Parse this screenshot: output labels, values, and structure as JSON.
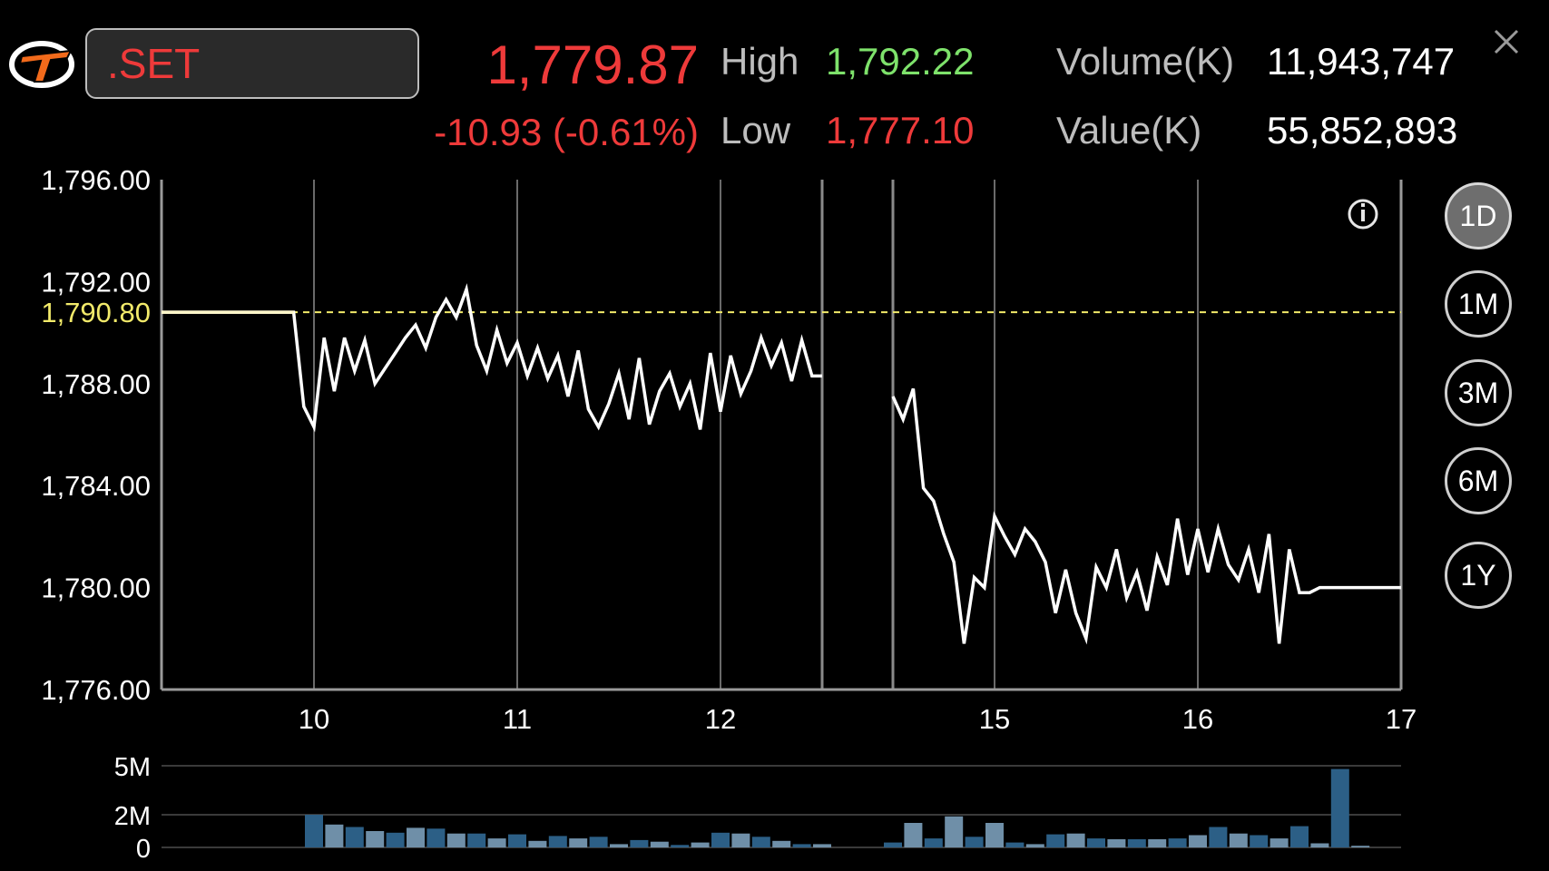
{
  "header": {
    "symbol": ".SET",
    "last": "1,779.87",
    "change": "-10.93 (-0.61%)",
    "high_label": "High",
    "high": "1,792.22",
    "low_label": "Low",
    "low": "1,777.10",
    "volume_label": "Volume(K)",
    "volume": "11,943,747",
    "value_label": "Value(K)",
    "value": "55,852,893"
  },
  "periods": [
    "1D",
    "1M",
    "3M",
    "6M",
    "1Y"
  ],
  "active_period": "1D",
  "colors": {
    "down": "#ee3a3a",
    "up": "#7ee26b",
    "prev_close": "#f2ea6a",
    "line": "#ffffff",
    "volume_dark": "#2c5f86",
    "volume_light": "#6f8fa8"
  },
  "chart_data": [
    {
      "type": "line",
      "y_ticks": [
        "1,776.00",
        "1,780.00",
        "1,784.00",
        "1,788.00",
        "1,792.00",
        "1,796.00"
      ],
      "x_ticks": [
        "10",
        "11",
        "12",
        "15",
        "16",
        "17"
      ],
      "ylim": [
        1776,
        1796
      ],
      "prev_close": 1790.8,
      "prev_close_label": "1,790.80",
      "sessions": [
        {
          "name": "morning",
          "points": [
            [
              9.25,
              1790.8
            ],
            [
              9.9,
              1790.8
            ],
            [
              9.95,
              1787.1
            ],
            [
              10.0,
              1786.3
            ],
            [
              10.05,
              1789.8
            ],
            [
              10.1,
              1787.7
            ],
            [
              10.15,
              1789.8
            ],
            [
              10.2,
              1788.5
            ],
            [
              10.25,
              1789.7
            ],
            [
              10.3,
              1788.0
            ],
            [
              10.35,
              1788.6
            ],
            [
              10.4,
              1789.2
            ],
            [
              10.45,
              1789.8
            ],
            [
              10.5,
              1790.3
            ],
            [
              10.55,
              1789.4
            ],
            [
              10.6,
              1790.6
            ],
            [
              10.65,
              1791.3
            ],
            [
              10.7,
              1790.6
            ],
            [
              10.75,
              1791.7
            ],
            [
              10.8,
              1789.5
            ],
            [
              10.85,
              1788.5
            ],
            [
              10.9,
              1790.1
            ],
            [
              10.95,
              1788.8
            ],
            [
              11.0,
              1789.6
            ],
            [
              11.05,
              1788.3
            ],
            [
              11.1,
              1789.4
            ],
            [
              11.15,
              1788.2
            ],
            [
              11.2,
              1789.1
            ],
            [
              11.25,
              1787.5
            ],
            [
              11.3,
              1789.3
            ],
            [
              11.35,
              1787.0
            ],
            [
              11.4,
              1786.3
            ],
            [
              11.45,
              1787.2
            ],
            [
              11.5,
              1788.4
            ],
            [
              11.55,
              1786.6
            ],
            [
              11.6,
              1789.0
            ],
            [
              11.65,
              1786.4
            ],
            [
              11.7,
              1787.7
            ],
            [
              11.75,
              1788.4
            ],
            [
              11.8,
              1787.1
            ],
            [
              11.85,
              1788.0
            ],
            [
              11.9,
              1786.2
            ],
            [
              11.95,
              1789.2
            ],
            [
              12.0,
              1786.9
            ],
            [
              12.05,
              1789.1
            ],
            [
              12.1,
              1787.6
            ],
            [
              12.15,
              1788.5
            ],
            [
              12.2,
              1789.8
            ],
            [
              12.25,
              1788.7
            ],
            [
              12.3,
              1789.6
            ],
            [
              12.35,
              1788.1
            ],
            [
              12.4,
              1789.7
            ],
            [
              12.45,
              1788.3
            ],
            [
              12.5,
              1788.3
            ]
          ]
        },
        {
          "name": "afternoon",
          "points": [
            [
              14.5,
              1787.5
            ],
            [
              14.55,
              1786.6
            ],
            [
              14.6,
              1787.8
            ],
            [
              14.65,
              1783.9
            ],
            [
              14.7,
              1783.4
            ],
            [
              14.75,
              1782.1
            ],
            [
              14.8,
              1781.0
            ],
            [
              14.85,
              1777.8
            ],
            [
              14.9,
              1780.4
            ],
            [
              14.95,
              1780.0
            ],
            [
              15.0,
              1782.8
            ],
            [
              15.05,
              1782.0
            ],
            [
              15.1,
              1781.3
            ],
            [
              15.15,
              1782.3
            ],
            [
              15.2,
              1781.8
            ],
            [
              15.25,
              1781.0
            ],
            [
              15.3,
              1779.0
            ],
            [
              15.35,
              1780.7
            ],
            [
              15.4,
              1779.0
            ],
            [
              15.45,
              1778.0
            ],
            [
              15.5,
              1780.8
            ],
            [
              15.55,
              1780.0
            ],
            [
              15.6,
              1781.5
            ],
            [
              15.65,
              1779.6
            ],
            [
              15.7,
              1780.6
            ],
            [
              15.75,
              1779.1
            ],
            [
              15.8,
              1781.2
            ],
            [
              15.85,
              1780.1
            ],
            [
              15.9,
              1782.7
            ],
            [
              15.95,
              1780.5
            ],
            [
              16.0,
              1782.3
            ],
            [
              16.05,
              1780.6
            ],
            [
              16.1,
              1782.3
            ],
            [
              16.15,
              1780.9
            ],
            [
              16.2,
              1780.3
            ],
            [
              16.25,
              1781.5
            ],
            [
              16.3,
              1779.8
            ],
            [
              16.35,
              1782.1
            ],
            [
              16.4,
              1777.8
            ],
            [
              16.45,
              1781.5
            ],
            [
              16.5,
              1779.8
            ],
            [
              16.55,
              1779.8
            ],
            [
              16.6,
              1780.0
            ],
            [
              16.65,
              1780.0
            ],
            [
              17.0,
              1780.0
            ]
          ]
        }
      ]
    },
    {
      "type": "bar",
      "y_ticks": [
        "0",
        "2M",
        "5M"
      ],
      "ylim": [
        0,
        5
      ],
      "bars": [
        [
          10.0,
          2.0
        ],
        [
          10.1,
          1.4
        ],
        [
          10.2,
          1.25
        ],
        [
          10.3,
          1.0
        ],
        [
          10.4,
          0.9
        ],
        [
          10.5,
          1.2
        ],
        [
          10.6,
          1.15
        ],
        [
          10.7,
          0.85
        ],
        [
          10.8,
          0.85
        ],
        [
          10.9,
          0.55
        ],
        [
          11.0,
          0.8
        ],
        [
          11.1,
          0.4
        ],
        [
          11.2,
          0.7
        ],
        [
          11.3,
          0.55
        ],
        [
          11.4,
          0.65
        ],
        [
          11.5,
          0.2
        ],
        [
          11.6,
          0.45
        ],
        [
          11.7,
          0.35
        ],
        [
          11.8,
          0.15
        ],
        [
          11.9,
          0.3
        ],
        [
          12.0,
          0.9
        ],
        [
          12.1,
          0.85
        ],
        [
          12.2,
          0.65
        ],
        [
          12.3,
          0.4
        ],
        [
          12.4,
          0.2
        ],
        [
          12.5,
          0.2
        ],
        [
          14.5,
          0.3
        ],
        [
          14.6,
          1.5
        ],
        [
          14.7,
          0.55
        ],
        [
          14.8,
          1.9
        ],
        [
          14.9,
          0.65
        ],
        [
          15.0,
          1.5
        ],
        [
          15.1,
          0.3
        ],
        [
          15.2,
          0.2
        ],
        [
          15.3,
          0.8
        ],
        [
          15.4,
          0.85
        ],
        [
          15.5,
          0.55
        ],
        [
          15.6,
          0.5
        ],
        [
          15.7,
          0.5
        ],
        [
          15.8,
          0.5
        ],
        [
          15.9,
          0.55
        ],
        [
          16.0,
          0.75
        ],
        [
          16.1,
          1.25
        ],
        [
          16.2,
          0.85
        ],
        [
          16.3,
          0.75
        ],
        [
          16.4,
          0.55
        ],
        [
          16.5,
          1.3
        ],
        [
          16.6,
          0.25
        ],
        [
          16.7,
          4.8
        ],
        [
          16.8,
          0.1
        ]
      ]
    }
  ]
}
